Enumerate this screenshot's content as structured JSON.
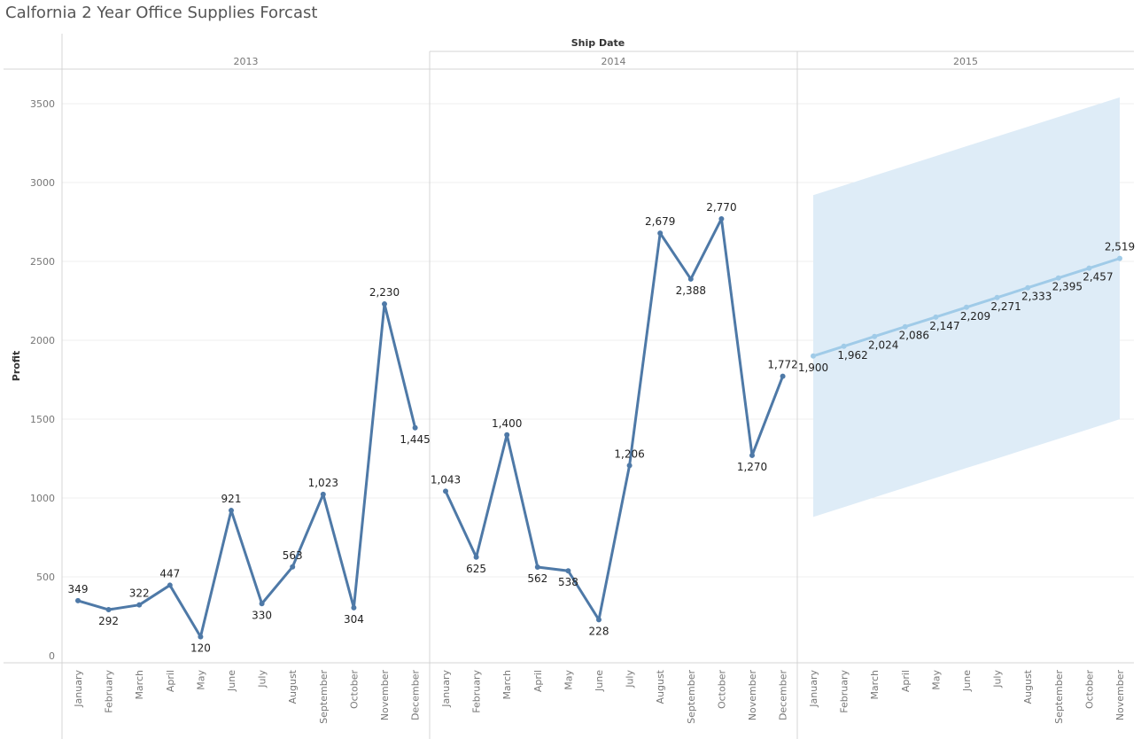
{
  "title": "Calfornia 2 Year Office Supplies Forcast",
  "colors": {
    "actual_line": "#4e79a7",
    "forecast_line": "#a0cbe8",
    "forecast_band": "#deecf7",
    "grid": "#efefef",
    "axis_text": "#777777",
    "divider": "#d4d4d4"
  },
  "chart_data": {
    "type": "line",
    "title": "Calfornia 2 Year Office Supplies Forcast",
    "header_label": "Ship Date",
    "ylabel": "Profit",
    "ylim": [
      0,
      3500
    ],
    "yticks": [
      0,
      500,
      1000,
      1500,
      2000,
      2500,
      3000,
      3500
    ],
    "grid": true,
    "years": [
      {
        "label": "2013",
        "months": [
          "January",
          "February",
          "March",
          "April",
          "May",
          "June",
          "July",
          "August",
          "September",
          "October",
          "November",
          "December"
        ],
        "series": "actual",
        "values": [
          349,
          292,
          322,
          447,
          120,
          921,
          330,
          563,
          1023,
          304,
          2230,
          1445
        ],
        "labels": [
          "349",
          "292",
          "322",
          "447",
          "120",
          "921",
          "330",
          "563",
          "1,023",
          "304",
          "2,230",
          "1,445"
        ]
      },
      {
        "label": "2014",
        "months": [
          "January",
          "February",
          "March",
          "April",
          "May",
          "June",
          "July",
          "August",
          "September",
          "October",
          "November",
          "December"
        ],
        "series": "actual",
        "values": [
          1043,
          625,
          1400,
          562,
          538,
          228,
          1206,
          2679,
          2388,
          2770,
          1270,
          1772
        ],
        "labels": [
          "1,043",
          "625",
          "1,400",
          "562",
          "538",
          "228",
          "1,206",
          "2,679",
          "2,388",
          "2,770",
          "1,270",
          "1,772"
        ]
      },
      {
        "label": "2015",
        "months": [
          "January",
          "February",
          "March",
          "April",
          "May",
          "June",
          "July",
          "August",
          "September",
          "October",
          "November"
        ],
        "series": "forecast",
        "values": [
          1900,
          1962,
          2024,
          2086,
          2147,
          2209,
          2271,
          2333,
          2395,
          2457,
          2519
        ],
        "labels": [
          "1,900",
          "1,962",
          "2,024",
          "2,086",
          "2,147",
          "2,209",
          "2,271",
          "2,333",
          "2,395",
          "2,457",
          "2,519"
        ],
        "band_lower": [
          880,
          942,
          1004,
          1066,
          1128,
          1190,
          1251,
          1313,
          1375,
          1437,
          1499
        ],
        "band_upper": [
          2920,
          2982,
          3044,
          3106,
          3168,
          3230,
          3292,
          3354,
          3416,
          3478,
          3540
        ]
      }
    ]
  }
}
